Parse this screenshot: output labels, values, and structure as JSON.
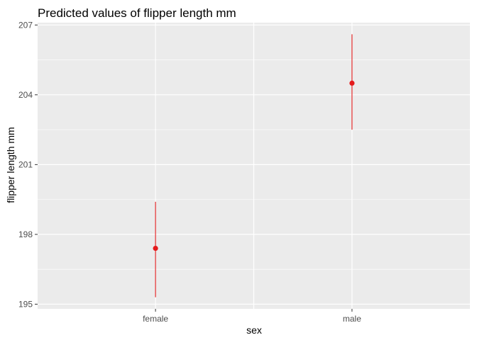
{
  "chart_data": {
    "type": "pointrange",
    "title": "Predicted values of flipper length mm",
    "xlabel": "sex",
    "ylabel": "flipper length mm",
    "categories": [
      "female",
      "male"
    ],
    "series": [
      {
        "points": [
          {
            "x": "female",
            "y": 197.4,
            "ymin": 195.3,
            "ymax": 199.4
          },
          {
            "x": "male",
            "y": 204.5,
            "ymin": 202.5,
            "ymax": 206.6
          }
        ],
        "color": "#e41a1c"
      }
    ],
    "y_ticks": [
      195,
      198,
      201,
      204,
      207
    ],
    "ylim": [
      194.8,
      207.1
    ],
    "grid": true,
    "panel_background": "#ebebeb",
    "grid_color": "#ffffff"
  }
}
